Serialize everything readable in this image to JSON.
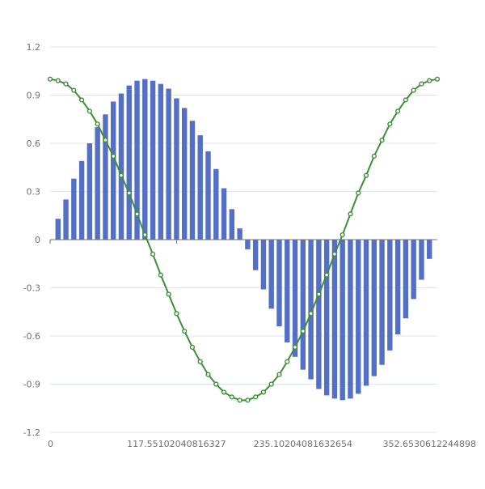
{
  "chart_data": {
    "type": "bar+line",
    "title": "",
    "xlabel": "",
    "ylabel": "",
    "x_axis_type": "value",
    "xlim": [
      0,
      360
    ],
    "ylim": [
      -1.2,
      1.2
    ],
    "y_ticks": [
      1.2,
      0.9,
      0.6,
      0.3,
      0,
      -0.3,
      -0.6,
      -0.9,
      -1.2
    ],
    "y_tick_labels": [
      "1.2",
      "0.9",
      "0.6",
      "0.3",
      "0",
      "-0.3",
      "-0.6",
      "-0.9",
      "-1.2"
    ],
    "x_ticks": [
      0,
      117.55102040816327,
      235.10204081632654,
      352.6530612244898
    ],
    "x_tick_labels": [
      "0",
      "117.55102040816327",
      "235.10204081632654",
      "352.6530612244898"
    ],
    "grid": true,
    "legend": "none",
    "series": [
      {
        "type": "bar",
        "color": "#5470c6",
        "x": [
          7.35,
          14.69,
          22.04,
          29.39,
          36.73,
          44.08,
          51.43,
          58.78,
          66.12,
          73.47,
          80.82,
          88.16,
          95.51,
          102.86,
          110.2,
          117.55,
          124.9,
          132.24,
          139.59,
          146.94,
          154.29,
          161.63,
          168.98,
          176.33,
          183.67,
          191.02,
          198.37,
          205.71,
          213.06,
          220.41,
          227.76,
          235.1,
          242.45,
          249.8,
          257.14,
          264.49,
          271.84,
          279.18,
          286.53,
          293.88,
          301.22,
          308.57,
          315.92,
          323.27,
          330.61,
          337.96,
          345.31,
          352.65
        ],
        "values": [
          0.13,
          0.25,
          0.38,
          0.49,
          0.6,
          0.7,
          0.78,
          0.86,
          0.91,
          0.96,
          0.99,
          1.0,
          0.99,
          0.97,
          0.94,
          0.88,
          0.82,
          0.74,
          0.65,
          0.55,
          0.44,
          0.32,
          0.19,
          0.07,
          -0.06,
          -0.19,
          -0.31,
          -0.43,
          -0.54,
          -0.64,
          -0.73,
          -0.81,
          -0.87,
          -0.93,
          -0.97,
          -0.99,
          -1.0,
          -0.99,
          -0.96,
          -0.91,
          -0.85,
          -0.78,
          -0.69,
          -0.59,
          -0.49,
          -0.37,
          -0.25,
          -0.12
        ]
      },
      {
        "type": "line",
        "color": "#3c8f36",
        "x": [
          0,
          7.35,
          14.69,
          22.04,
          29.39,
          36.73,
          44.08,
          51.43,
          58.78,
          66.12,
          73.47,
          80.82,
          88.16,
          95.51,
          102.86,
          110.2,
          117.55,
          124.9,
          132.24,
          139.59,
          146.94,
          154.29,
          161.63,
          168.98,
          176.33,
          183.67,
          191.02,
          198.37,
          205.71,
          213.06,
          220.41,
          227.76,
          235.1,
          242.45,
          249.8,
          257.14,
          264.49,
          271.84,
          279.18,
          286.53,
          293.88,
          301.22,
          308.57,
          315.92,
          323.27,
          330.61,
          337.96,
          345.31,
          352.65,
          360
        ],
        "values": [
          1.0,
          0.99,
          0.97,
          0.93,
          0.87,
          0.8,
          0.72,
          0.62,
          0.52,
          0.4,
          0.29,
          0.16,
          0.03,
          -0.09,
          -0.22,
          -0.34,
          -0.46,
          -0.57,
          -0.67,
          -0.76,
          -0.84,
          -0.9,
          -0.95,
          -0.98,
          -1.0,
          -1.0,
          -0.98,
          -0.95,
          -0.9,
          -0.84,
          -0.76,
          -0.67,
          -0.57,
          -0.46,
          -0.34,
          -0.22,
          -0.09,
          0.03,
          0.16,
          0.29,
          0.4,
          0.52,
          0.62,
          0.72,
          0.8,
          0.87,
          0.93,
          0.97,
          0.99,
          1.0
        ]
      }
    ]
  }
}
